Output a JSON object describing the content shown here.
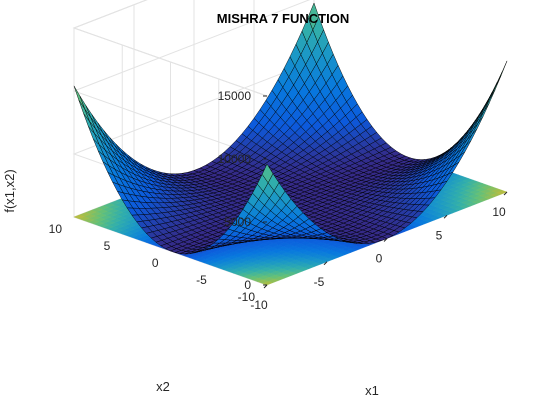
{
  "figure": {
    "title": "MISHRA 7 FUNCTION",
    "xlabel": "x1",
    "ylabel": "x2",
    "zlabel": "f(x1,x2)"
  },
  "chart_data": {
    "type": "surface3d",
    "function": "Mishra 7",
    "title": "MISHRA 7 FUNCTION",
    "xlabel": "x1",
    "ylabel": "x2",
    "zlabel": "f(x1,x2)",
    "xlim": [
      -10,
      10
    ],
    "ylim": [
      -10,
      10
    ],
    "zlim": [
      0,
      15000
    ],
    "x_ticks": [
      "-10",
      "-5",
      "0",
      "5",
      "10"
    ],
    "y_ticks": [
      "-10",
      "-5",
      "0",
      "5",
      "10"
    ],
    "z_ticks": [
      "0",
      "5000",
      "10000",
      "15000"
    ],
    "grid": true,
    "colormap": "parula",
    "contour_projection_on_floor": true,
    "grid_step": 0.5,
    "max_value": 15876
  }
}
